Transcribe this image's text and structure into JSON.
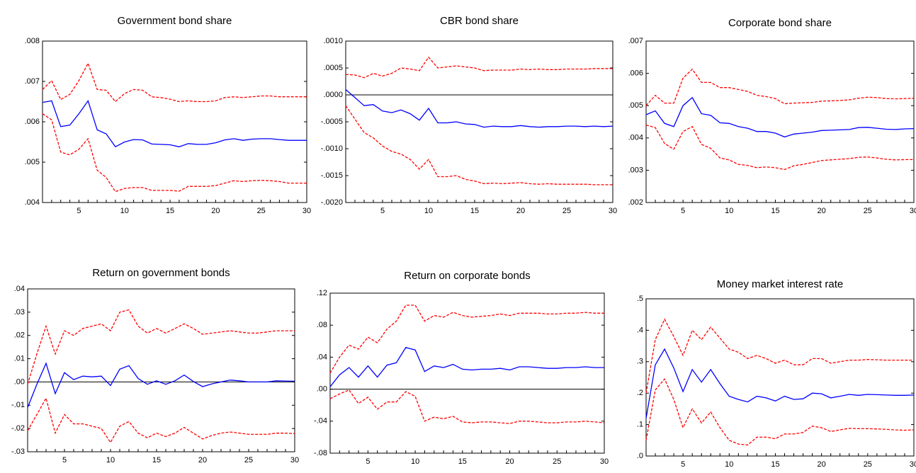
{
  "chart_data": [
    {
      "type": "line",
      "title": "Government bond share",
      "xlabel": "",
      "ylabel": "",
      "xlim": [
        1,
        30
      ],
      "ylim": [
        0.004,
        0.008
      ],
      "yticks": [
        0.004,
        0.005,
        0.006,
        0.007,
        0.008
      ],
      "ytick_labels": [
        ".004",
        ".005",
        ".006",
        ".007",
        ".008"
      ],
      "xticks": [
        5,
        10,
        15,
        20,
        25,
        30
      ],
      "xtick_labels": [
        "5",
        "10",
        "15",
        "20",
        "25",
        "30"
      ],
      "zero_line": false,
      "colors": {
        "response": "#0000ff",
        "band": "#ff0000"
      },
      "x": [
        1,
        2,
        3,
        4,
        5,
        6,
        7,
        8,
        9,
        10,
        11,
        12,
        13,
        14,
        15,
        16,
        17,
        18,
        19,
        20,
        21,
        22,
        23,
        24,
        25,
        26,
        27,
        28,
        29,
        30
      ],
      "series": [
        {
          "role": "response",
          "style": "solid",
          "values": [
            0.00648,
            0.00652,
            0.00588,
            0.00592,
            0.0062,
            0.00652,
            0.0058,
            0.0057,
            0.00538,
            0.0055,
            0.00556,
            0.00555,
            0.00545,
            0.00544,
            0.00543,
            0.00538,
            0.00546,
            0.00544,
            0.00544,
            0.00548,
            0.00555,
            0.00558,
            0.00554,
            0.00557,
            0.00558,
            0.00558,
            0.00556,
            0.00554,
            0.00554,
            0.00554
          ]
        },
        {
          "role": "upper",
          "style": "dashed",
          "values": [
            0.0068,
            0.00702,
            0.00655,
            0.00668,
            0.00702,
            0.00745,
            0.0068,
            0.00678,
            0.0065,
            0.0067,
            0.0068,
            0.00678,
            0.00662,
            0.0066,
            0.00656,
            0.0065,
            0.00652,
            0.0065,
            0.0065,
            0.00652,
            0.0066,
            0.00662,
            0.0066,
            0.00662,
            0.00664,
            0.00664,
            0.00662,
            0.00662,
            0.00662,
            0.00662
          ]
        },
        {
          "role": "lower",
          "style": "dashed",
          "values": [
            0.0062,
            0.00605,
            0.00525,
            0.00518,
            0.00532,
            0.00558,
            0.0048,
            0.00462,
            0.00427,
            0.00435,
            0.00437,
            0.00437,
            0.0043,
            0.0043,
            0.0043,
            0.00428,
            0.0044,
            0.0044,
            0.0044,
            0.00442,
            0.00448,
            0.00454,
            0.00452,
            0.00454,
            0.00455,
            0.00454,
            0.00452,
            0.00448,
            0.00448,
            0.00448
          ]
        }
      ]
    },
    {
      "type": "line",
      "title": "CBR bond share",
      "xlabel": "",
      "ylabel": "",
      "xlim": [
        1,
        30
      ],
      "ylim": [
        -0.002,
        0.001
      ],
      "yticks": [
        -0.002,
        -0.0015,
        -0.001,
        -0.0005,
        0.0,
        0.0005,
        0.001
      ],
      "ytick_labels": [
        "-.0020",
        "-.0015",
        "-.0010",
        "-.0005",
        ".0000",
        ".0005",
        ".0010"
      ],
      "xticks": [
        5,
        10,
        15,
        20,
        25,
        30
      ],
      "xtick_labels": [
        "5",
        "10",
        "15",
        "20",
        "25",
        "30"
      ],
      "zero_line": true,
      "colors": {
        "response": "#0000ff",
        "band": "#ff0000"
      },
      "x": [
        1,
        2,
        3,
        4,
        5,
        6,
        7,
        8,
        9,
        10,
        11,
        12,
        13,
        14,
        15,
        16,
        17,
        18,
        19,
        20,
        21,
        22,
        23,
        24,
        25,
        26,
        27,
        28,
        29,
        30
      ],
      "series": [
        {
          "role": "response",
          "style": "solid",
          "values": [
            0.0001,
            -5e-05,
            -0.0002,
            -0.00018,
            -0.0003,
            -0.00033,
            -0.00028,
            -0.00035,
            -0.00047,
            -0.00025,
            -0.00052,
            -0.00052,
            -0.0005,
            -0.00054,
            -0.00055,
            -0.0006,
            -0.00058,
            -0.00059,
            -0.00059,
            -0.00057,
            -0.00059,
            -0.0006,
            -0.00059,
            -0.00059,
            -0.00058,
            -0.00058,
            -0.00059,
            -0.00058,
            -0.00059,
            -0.00058
          ]
        },
        {
          "role": "upper",
          "style": "dashed",
          "values": [
            0.00038,
            0.00037,
            0.00032,
            0.0004,
            0.00035,
            0.0004,
            0.0005,
            0.00048,
            0.00045,
            0.0007,
            0.0005,
            0.00052,
            0.00054,
            0.00052,
            0.0005,
            0.00045,
            0.00046,
            0.00046,
            0.00046,
            0.00048,
            0.00047,
            0.00048,
            0.00047,
            0.00047,
            0.00048,
            0.00048,
            0.00048,
            0.00049,
            0.00049,
            0.00049
          ]
        },
        {
          "role": "lower",
          "style": "dashed",
          "values": [
            -0.0002,
            -0.00045,
            -0.0007,
            -0.0008,
            -0.00095,
            -0.00105,
            -0.0011,
            -0.0012,
            -0.00138,
            -0.0012,
            -0.00152,
            -0.00152,
            -0.0015,
            -0.00157,
            -0.0016,
            -0.00165,
            -0.00164,
            -0.00165,
            -0.00164,
            -0.00163,
            -0.00165,
            -0.00166,
            -0.00165,
            -0.00166,
            -0.00166,
            -0.00166,
            -0.00166,
            -0.00167,
            -0.00167,
            -0.00167
          ]
        }
      ]
    },
    {
      "type": "line",
      "title": "Corporate bond share",
      "xlabel": "",
      "ylabel": "",
      "xlim": [
        1,
        30
      ],
      "ylim": [
        0.002,
        0.007
      ],
      "yticks": [
        0.002,
        0.003,
        0.004,
        0.005,
        0.006,
        0.007
      ],
      "ytick_labels": [
        ".002",
        ".003",
        ".004",
        ".005",
        ".006",
        ".007"
      ],
      "xticks": [
        5,
        10,
        15,
        20,
        25,
        30
      ],
      "xtick_labels": [
        "5",
        "10",
        "15",
        "20",
        "25",
        "30"
      ],
      "zero_line": false,
      "colors": {
        "response": "#0000ff",
        "band": "#ff0000"
      },
      "x": [
        1,
        2,
        3,
        4,
        5,
        6,
        7,
        8,
        9,
        10,
        11,
        12,
        13,
        14,
        15,
        16,
        17,
        18,
        19,
        20,
        21,
        22,
        23,
        24,
        25,
        26,
        27,
        28,
        29,
        30
      ],
      "series": [
        {
          "role": "response",
          "style": "solid",
          "values": [
            0.00472,
            0.00484,
            0.00445,
            0.00435,
            0.005,
            0.00525,
            0.00475,
            0.0047,
            0.00447,
            0.00445,
            0.00435,
            0.0043,
            0.0042,
            0.0042,
            0.00415,
            0.00403,
            0.00412,
            0.00415,
            0.00418,
            0.00423,
            0.00424,
            0.00425,
            0.00426,
            0.00432,
            0.00433,
            0.0043,
            0.00427,
            0.00426,
            0.00428,
            0.00429
          ]
        },
        {
          "role": "upper",
          "style": "dashed",
          "values": [
            0.005,
            0.00532,
            0.00508,
            0.00508,
            0.00585,
            0.00613,
            0.00572,
            0.00572,
            0.00556,
            0.00556,
            0.0055,
            0.00544,
            0.00532,
            0.00528,
            0.00522,
            0.00506,
            0.00508,
            0.00509,
            0.0051,
            0.00514,
            0.00515,
            0.00516,
            0.00518,
            0.00523,
            0.00526,
            0.00525,
            0.00522,
            0.00521,
            0.00522,
            0.00523
          ]
        },
        {
          "role": "lower",
          "style": "dashed",
          "values": [
            0.0044,
            0.00432,
            0.00383,
            0.00365,
            0.0042,
            0.00435,
            0.0038,
            0.00368,
            0.00338,
            0.00332,
            0.00318,
            0.00315,
            0.00308,
            0.0031,
            0.00308,
            0.00302,
            0.00314,
            0.00318,
            0.00324,
            0.0033,
            0.00332,
            0.00334,
            0.00336,
            0.0034,
            0.00341,
            0.00338,
            0.00334,
            0.00332,
            0.00333,
            0.00333
          ]
        }
      ]
    },
    {
      "type": "line",
      "title": "Return on government bonds",
      "xlabel": "",
      "ylabel": "",
      "xlim": [
        1,
        30
      ],
      "ylim": [
        -0.03,
        0.04
      ],
      "yticks": [
        -0.03,
        -0.02,
        -0.01,
        0.0,
        0.01,
        0.02,
        0.03,
        0.04
      ],
      "ytick_labels": [
        "-.03",
        "-.02",
        "-.01",
        ".00",
        ".01",
        ".02",
        ".03",
        ".04"
      ],
      "xticks": [
        5,
        10,
        15,
        20,
        25,
        30
      ],
      "xtick_labels": [
        "5",
        "10",
        "15",
        "20",
        "25",
        "30"
      ],
      "zero_line": true,
      "colors": {
        "response": "#0000ff",
        "band": "#ff0000"
      },
      "x": [
        1,
        2,
        3,
        4,
        5,
        6,
        7,
        8,
        9,
        10,
        11,
        12,
        13,
        14,
        15,
        16,
        17,
        18,
        19,
        20,
        21,
        22,
        23,
        24,
        25,
        26,
        27,
        28,
        29,
        30
      ],
      "series": [
        {
          "role": "response",
          "style": "solid",
          "values": [
            -0.011,
            -0.001,
            0.008,
            -0.005,
            0.004,
            0.001,
            0.0025,
            0.0022,
            0.0025,
            -0.0015,
            0.0055,
            0.007,
            0.0015,
            -0.001,
            0.0005,
            -0.001,
            0.0005,
            0.003,
            0.0002,
            -0.002,
            -0.0008,
            0.0,
            0.0008,
            0.0005,
            0.0,
            0.0,
            0.0,
            0.0005,
            0.0004,
            0.0003
          ]
        },
        {
          "role": "upper",
          "style": "dashed",
          "values": [
            -0.001,
            0.012,
            0.024,
            0.012,
            0.022,
            0.02,
            0.023,
            0.024,
            0.025,
            0.022,
            0.03,
            0.031,
            0.024,
            0.021,
            0.023,
            0.021,
            0.023,
            0.025,
            0.023,
            0.0205,
            0.021,
            0.0215,
            0.022,
            0.0215,
            0.021,
            0.021,
            0.0215,
            0.022,
            0.022,
            0.022
          ]
        },
        {
          "role": "lower",
          "style": "dashed",
          "values": [
            -0.021,
            -0.014,
            -0.007,
            -0.022,
            -0.014,
            -0.018,
            -0.018,
            -0.019,
            -0.02,
            -0.026,
            -0.019,
            -0.017,
            -0.022,
            -0.024,
            -0.022,
            -0.0235,
            -0.022,
            -0.0195,
            -0.022,
            -0.0245,
            -0.023,
            -0.022,
            -0.0215,
            -0.022,
            -0.0225,
            -0.0225,
            -0.0225,
            -0.022,
            -0.022,
            -0.0222
          ]
        }
      ]
    },
    {
      "type": "line",
      "title": "Return on corporate bonds",
      "xlabel": "",
      "ylabel": "",
      "xlim": [
        1,
        30
      ],
      "ylim": [
        -0.08,
        0.12
      ],
      "yticks": [
        -0.08,
        -0.04,
        0.0,
        0.04,
        0.08,
        0.12
      ],
      "ytick_labels": [
        "-.08",
        "-.04",
        ".00",
        ".04",
        ".08",
        ".12"
      ],
      "xticks": [
        5,
        10,
        15,
        20,
        25,
        30
      ],
      "xtick_labels": [
        "5",
        "10",
        "15",
        "20",
        "25",
        "30"
      ],
      "zero_line": true,
      "colors": {
        "response": "#0000ff",
        "band": "#ff0000"
      },
      "x": [
        1,
        2,
        3,
        4,
        5,
        6,
        7,
        8,
        9,
        10,
        11,
        12,
        13,
        14,
        15,
        16,
        17,
        18,
        19,
        20,
        21,
        22,
        23,
        24,
        25,
        26,
        27,
        28,
        29,
        30
      ],
      "series": [
        {
          "role": "response",
          "style": "solid",
          "values": [
            0.003,
            0.018,
            0.027,
            0.015,
            0.029,
            0.015,
            0.03,
            0.033,
            0.052,
            0.049,
            0.022,
            0.029,
            0.027,
            0.031,
            0.025,
            0.024,
            0.025,
            0.025,
            0.026,
            0.024,
            0.028,
            0.028,
            0.027,
            0.026,
            0.026,
            0.027,
            0.027,
            0.028,
            0.027,
            0.027
          ]
        },
        {
          "role": "upper",
          "style": "dashed",
          "values": [
            0.02,
            0.04,
            0.055,
            0.05,
            0.065,
            0.058,
            0.075,
            0.085,
            0.105,
            0.105,
            0.085,
            0.092,
            0.09,
            0.096,
            0.092,
            0.09,
            0.091,
            0.092,
            0.094,
            0.092,
            0.095,
            0.095,
            0.095,
            0.094,
            0.094,
            0.095,
            0.095,
            0.096,
            0.095,
            0.095
          ]
        },
        {
          "role": "lower",
          "style": "dashed",
          "values": [
            -0.012,
            -0.006,
            -0.001,
            -0.018,
            -0.01,
            -0.025,
            -0.016,
            -0.016,
            -0.003,
            -0.009,
            -0.04,
            -0.035,
            -0.037,
            -0.034,
            -0.041,
            -0.042,
            -0.041,
            -0.041,
            -0.042,
            -0.043,
            -0.04,
            -0.04,
            -0.041,
            -0.042,
            -0.042,
            -0.041,
            -0.041,
            -0.04,
            -0.041,
            -0.042
          ]
        }
      ]
    },
    {
      "type": "line",
      "title": "Money market interest rate",
      "xlabel": "",
      "ylabel": "",
      "xlim": [
        1,
        30
      ],
      "ylim": [
        0.0,
        0.5
      ],
      "yticks": [
        0.0,
        0.1,
        0.2,
        0.3,
        0.4,
        0.5
      ],
      "ytick_labels": [
        ".0",
        ".1",
        ".2",
        ".3",
        ".4",
        ".5"
      ],
      "xticks": [
        5,
        10,
        15,
        20,
        25,
        30
      ],
      "xtick_labels": [
        "5",
        "10",
        "15",
        "20",
        "25",
        "30"
      ],
      "zero_line": false,
      "colors": {
        "response": "#0000ff",
        "band": "#ff0000"
      },
      "x": [
        1,
        2,
        3,
        4,
        5,
        6,
        7,
        8,
        9,
        10,
        11,
        12,
        13,
        14,
        15,
        16,
        17,
        18,
        19,
        20,
        21,
        22,
        23,
        24,
        25,
        26,
        27,
        28,
        29,
        30
      ],
      "series": [
        {
          "role": "response",
          "style": "solid",
          "values": [
            0.12,
            0.29,
            0.34,
            0.28,
            0.205,
            0.275,
            0.235,
            0.275,
            0.23,
            0.19,
            0.18,
            0.172,
            0.19,
            0.185,
            0.175,
            0.19,
            0.18,
            0.182,
            0.2,
            0.198,
            0.185,
            0.19,
            0.196,
            0.193,
            0.196,
            0.195,
            0.194,
            0.193,
            0.193,
            0.194
          ]
        },
        {
          "role": "upper",
          "style": "dashed",
          "values": [
            0.2,
            0.37,
            0.435,
            0.38,
            0.32,
            0.4,
            0.37,
            0.41,
            0.375,
            0.34,
            0.33,
            0.31,
            0.32,
            0.31,
            0.295,
            0.305,
            0.29,
            0.29,
            0.31,
            0.31,
            0.295,
            0.3,
            0.305,
            0.305,
            0.307,
            0.306,
            0.305,
            0.305,
            0.305,
            0.305
          ]
        },
        {
          "role": "lower",
          "style": "dashed",
          "values": [
            0.05,
            0.21,
            0.245,
            0.18,
            0.09,
            0.15,
            0.105,
            0.14,
            0.09,
            0.05,
            0.038,
            0.035,
            0.06,
            0.06,
            0.055,
            0.07,
            0.07,
            0.075,
            0.095,
            0.09,
            0.078,
            0.083,
            0.088,
            0.087,
            0.087,
            0.086,
            0.085,
            0.083,
            0.082,
            0.083
          ]
        }
      ]
    }
  ]
}
